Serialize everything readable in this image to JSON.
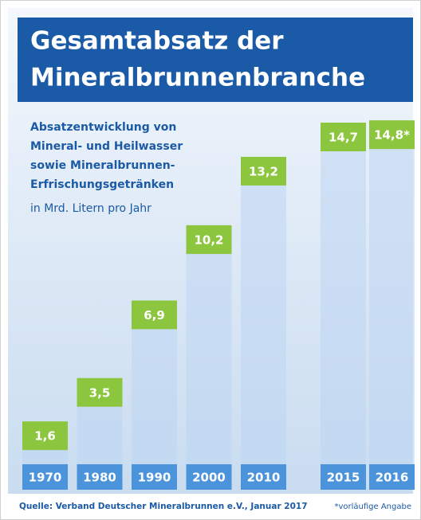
{
  "chart_data": {
    "type": "bar",
    "title_lines": [
      "Gesamtabsatz der",
      "Mineralbrunnenbranche"
    ],
    "subtitle_lines": [
      "Absatzentwicklung von",
      "Mineral- und Heilwasser",
      "sowie Mineralbrunnen-",
      "Erfrischungsgetränken"
    ],
    "unit": "in Mrd. Litern pro Jahr",
    "categories": [
      "1970",
      "1980",
      "1990",
      "2000",
      "2010",
      "2015",
      "2016"
    ],
    "values": [
      1.6,
      3.5,
      6.9,
      10.2,
      13.2,
      14.7,
      14.8
    ],
    "value_labels": [
      "1,6",
      "3,5",
      "6,9",
      "10,2",
      "13,2",
      "14,7",
      "14,8*"
    ],
    "color": "#8cc63e",
    "source": "Quelle: Verband Deutscher Mineralbrunnen e.V., Januar 2017",
    "footnote": "*vorläufige Angabe"
  }
}
